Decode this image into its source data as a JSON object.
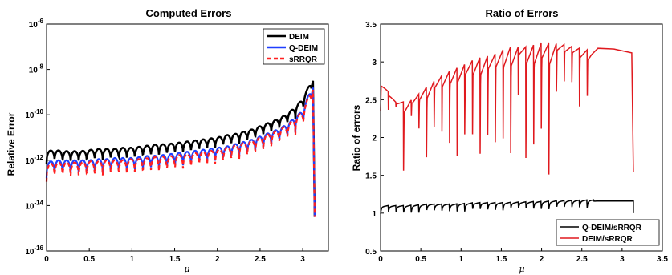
{
  "chart_data": [
    {
      "type": "line",
      "title": "Computed Errors",
      "xlabel": "μ",
      "ylabel": "Relative Error",
      "xlim": [
        0,
        3
      ],
      "ylim_log10": [
        -16,
        -6
      ],
      "y_scale": "log",
      "xticks": [
        "0",
        "0.5",
        "1",
        "1.5",
        "2",
        "2.5",
        "3"
      ],
      "yticks_exp": [
        "-16",
        "-14",
        "-12",
        "-10",
        "-8",
        "-6"
      ],
      "ytick_base": "10",
      "legend_position": "top-right",
      "colors": {
        "DEIM": "#000000",
        "Q-DEIM": "#1f3fff",
        "sRRQR": "#ff2020"
      },
      "series": [
        {
          "name": "DEIM",
          "x": [
            0,
            0.1,
            0.2,
            0.3,
            0.4,
            0.5,
            0.6,
            0.7,
            0.8,
            0.9,
            1.0,
            1.1,
            1.2,
            1.3,
            1.4,
            1.5,
            1.6,
            1.7,
            1.8,
            1.9,
            2.0,
            2.1,
            2.2,
            2.3,
            2.4,
            2.5,
            2.6,
            2.7,
            2.8,
            2.9,
            3.0,
            3.1,
            3.14
          ],
          "y_log10": [
            -11.6,
            -11.55,
            -11.6,
            -11.6,
            -11.6,
            -11.55,
            -11.5,
            -11.5,
            -11.5,
            -11.45,
            -11.45,
            -11.4,
            -11.35,
            -11.3,
            -11.3,
            -11.25,
            -11.2,
            -11.15,
            -11.1,
            -11.05,
            -11.0,
            -10.9,
            -10.85,
            -10.75,
            -10.65,
            -10.5,
            -10.35,
            -10.2,
            -10.0,
            -9.7,
            -9.3,
            -8.5,
            -14.5
          ]
        },
        {
          "name": "Q-DEIM",
          "x": [
            0,
            0.1,
            0.2,
            0.3,
            0.4,
            0.5,
            0.6,
            0.7,
            0.8,
            0.9,
            1.0,
            1.1,
            1.2,
            1.3,
            1.4,
            1.5,
            1.6,
            1.7,
            1.8,
            1.9,
            2.0,
            2.1,
            2.2,
            2.3,
            2.4,
            2.5,
            2.6,
            2.7,
            2.8,
            2.9,
            3.0,
            3.1,
            3.14
          ],
          "y_log10": [
            -12.1,
            -12.0,
            -12.0,
            -12.0,
            -12.0,
            -12.0,
            -11.95,
            -11.95,
            -11.9,
            -11.9,
            -11.9,
            -11.85,
            -11.8,
            -11.8,
            -11.75,
            -11.7,
            -11.65,
            -11.6,
            -11.55,
            -11.5,
            -11.45,
            -11.4,
            -11.3,
            -11.2,
            -11.1,
            -10.95,
            -10.8,
            -10.65,
            -10.45,
            -10.15,
            -9.8,
            -8.8,
            -14.5
          ]
        },
        {
          "name": "sRRQR",
          "x": [
            0,
            0.1,
            0.2,
            0.3,
            0.4,
            0.5,
            0.6,
            0.7,
            0.8,
            0.9,
            1.0,
            1.1,
            1.2,
            1.3,
            1.4,
            1.5,
            1.6,
            1.7,
            1.8,
            1.9,
            2.0,
            2.1,
            2.2,
            2.3,
            2.4,
            2.5,
            2.6,
            2.7,
            2.8,
            2.9,
            3.0,
            3.1,
            3.14
          ],
          "y_log10": [
            -12.2,
            -12.1,
            -12.1,
            -12.1,
            -12.1,
            -12.05,
            -12.05,
            -12.0,
            -12.0,
            -12.0,
            -11.95,
            -11.95,
            -11.9,
            -11.85,
            -11.85,
            -11.8,
            -11.75,
            -11.7,
            -11.65,
            -11.6,
            -11.55,
            -11.45,
            -11.35,
            -11.25,
            -11.15,
            -11.0,
            -10.85,
            -10.7,
            -10.5,
            -10.2,
            -9.85,
            -8.9,
            -14.5
          ]
        }
      ]
    },
    {
      "type": "line",
      "title": "Ratio of Errors",
      "xlabel": "μ",
      "ylabel": "Ratio of errors",
      "xlim": [
        0,
        3.5
      ],
      "ylim": [
        0.5,
        3.5
      ],
      "xticks": [
        "0",
        "0.5",
        "1",
        "1.5",
        "2",
        "2.5",
        "3",
        "3.5"
      ],
      "yticks": [
        "0.5",
        "1",
        "1.5",
        "2",
        "2.5",
        "3",
        "3.5"
      ],
      "legend_position": "bottom-right",
      "colors": {
        "Q-DEIM/sRRQR": "#000000",
        "DEIM/sRRQR": "#e0191e"
      },
      "series": [
        {
          "name": "Q-DEIM/sRRQR",
          "x": [
            0,
            0.3,
            0.6,
            0.9,
            1.2,
            1.5,
            1.8,
            2.1,
            2.4,
            2.7,
            3.0,
            3.14
          ],
          "y": [
            1.08,
            1.08,
            1.1,
            1.1,
            1.12,
            1.12,
            1.13,
            1.14,
            1.15,
            1.16,
            1.16,
            1.0
          ]
        },
        {
          "name": "DEIM/sRRQR",
          "x": [
            0,
            0.2,
            0.4,
            0.6,
            0.8,
            1.0,
            1.2,
            1.4,
            1.6,
            1.8,
            2.0,
            2.2,
            2.4,
            2.6,
            2.8,
            3.0,
            3.14
          ],
          "y": [
            2.75,
            2.45,
            2.5,
            2.7,
            2.85,
            2.95,
            3.05,
            3.1,
            3.2,
            3.2,
            3.25,
            3.25,
            3.2,
            3.15,
            3.18,
            3.16,
            3.12
          ]
        }
      ]
    }
  ]
}
